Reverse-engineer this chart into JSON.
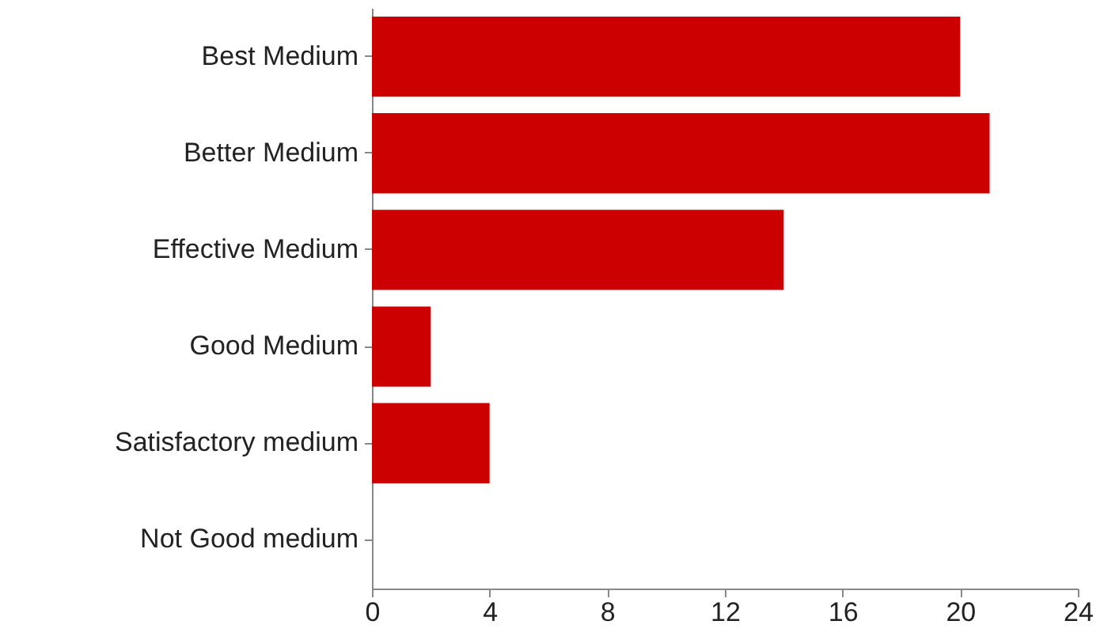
{
  "chart_data": {
    "type": "bar",
    "orientation": "horizontal",
    "categories": [
      "Best Medium",
      "Better Medium",
      "Effective Medium",
      "Good Medium",
      "Satisfactory medium",
      "Not Good medium"
    ],
    "values": [
      20,
      21,
      14,
      2,
      4,
      0
    ],
    "color": "#cc0000",
    "xlim": [
      0,
      24
    ],
    "xticks": [
      0,
      4,
      8,
      12,
      16,
      20,
      24
    ],
    "grid": false
  }
}
